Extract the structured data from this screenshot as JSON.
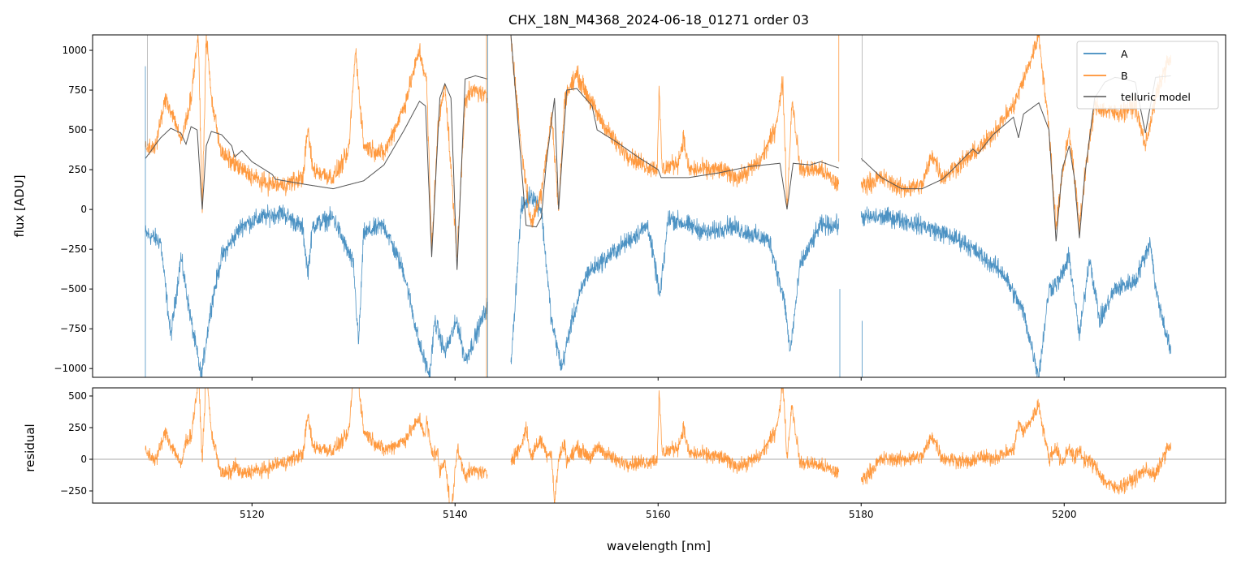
{
  "chart_data": {
    "type": "line",
    "title": "CHX_18N_M4368_2024-06-18_01271  order 03",
    "xlabel": "wavelength [nm]",
    "xlim": [
      5104.3,
      5215.9
    ],
    "xticks": [
      5120,
      5140,
      5160,
      5180,
      5200
    ],
    "legend_position": "top-right",
    "colors": {
      "A": "#1f77b4",
      "B": "#ff7f0e",
      "model": "#555555"
    },
    "panels": [
      {
        "name": "flux",
        "ylabel": "flux [ADU]",
        "ylim": [
          -1055,
          1097
        ],
        "yticks": [
          1000,
          750,
          500,
          250,
          0,
          -250,
          -500,
          -750,
          -1000
        ],
        "legend": [
          "A",
          "B",
          "telluric model"
        ]
      },
      {
        "name": "residual",
        "ylabel": "residual",
        "ylim": [
          -346,
          564
        ],
        "yticks": [
          500,
          250,
          0,
          -250
        ]
      }
    ],
    "segments": [
      [
        5109.5,
        5143.2
      ],
      [
        5145.5,
        5177.8
      ],
      [
        5180.0,
        5210.5
      ]
    ],
    "series": [
      {
        "name": "telluric model",
        "points": [
          [
            5109.5,
            320
          ],
          [
            5111,
            450
          ],
          [
            5112,
            510
          ],
          [
            5113,
            480
          ],
          [
            5113.5,
            410
          ],
          [
            5114,
            520
          ],
          [
            5114.6,
            500
          ],
          [
            5115.1,
            0
          ],
          [
            5115.5,
            400
          ],
          [
            5116,
            490
          ],
          [
            5117,
            470
          ],
          [
            5118,
            400
          ],
          [
            5118.3,
            330
          ],
          [
            5119,
            370
          ],
          [
            5120,
            300
          ],
          [
            5122,
            220
          ],
          [
            5122.3,
            190
          ],
          [
            5125,
            160
          ],
          [
            5128,
            130
          ],
          [
            5131,
            180
          ],
          [
            5133,
            280
          ],
          [
            5135,
            500
          ],
          [
            5136.5,
            680
          ],
          [
            5137.1,
            650
          ],
          [
            5137.7,
            -300
          ],
          [
            5138.5,
            700
          ],
          [
            5139,
            790
          ],
          [
            5139.6,
            700
          ],
          [
            5140.2,
            -380
          ],
          [
            5141,
            820
          ],
          [
            5142,
            840
          ],
          [
            5143.2,
            820
          ],
          [
            5145.5,
            1100
          ],
          [
            5146.5,
            300
          ],
          [
            5147,
            -100
          ],
          [
            5148,
            -110
          ],
          [
            5148.5,
            -50
          ],
          [
            5149,
            300
          ],
          [
            5149.8,
            700
          ],
          [
            5150.2,
            0
          ],
          [
            5151,
            750
          ],
          [
            5152,
            760
          ],
          [
            5153.5,
            650
          ],
          [
            5154,
            500
          ],
          [
            5156,
            420
          ],
          [
            5158,
            330
          ],
          [
            5160,
            250
          ],
          [
            5160.3,
            200
          ],
          [
            5163,
            200
          ],
          [
            5166,
            230
          ],
          [
            5169,
            270
          ],
          [
            5172,
            290
          ],
          [
            5172.7,
            0
          ],
          [
            5173.3,
            290
          ],
          [
            5175,
            280
          ],
          [
            5176,
            300
          ],
          [
            5177.8,
            260
          ],
          [
            5180,
            320
          ],
          [
            5182,
            200
          ],
          [
            5184,
            130
          ],
          [
            5186,
            130
          ],
          [
            5188,
            190
          ],
          [
            5189,
            250
          ],
          [
            5191,
            380
          ],
          [
            5191.5,
            350
          ],
          [
            5193,
            470
          ],
          [
            5195,
            580
          ],
          [
            5195.5,
            450
          ],
          [
            5196,
            600
          ],
          [
            5197.5,
            670
          ],
          [
            5198.5,
            500
          ],
          [
            5199.2,
            -200
          ],
          [
            5199.8,
            250
          ],
          [
            5200.5,
            400
          ],
          [
            5201,
            200
          ],
          [
            5201.5,
            -180
          ],
          [
            5202,
            200
          ],
          [
            5203,
            700
          ],
          [
            5204,
            800
          ],
          [
            5205,
            830
          ],
          [
            5206,
            820
          ],
          [
            5207,
            800
          ],
          [
            5208,
            480
          ],
          [
            5209,
            830
          ],
          [
            5210.5,
            840
          ]
        ]
      },
      {
        "name": "B",
        "points": [
          [
            5109.5,
            380
          ],
          [
            5110.5,
            400
          ],
          [
            5111.5,
            700
          ],
          [
            5112.5,
            550
          ],
          [
            5113,
            420
          ],
          [
            5114,
            700
          ],
          [
            5114.7,
            1100
          ],
          [
            5115.1,
            0
          ],
          [
            5115.5,
            1100
          ],
          [
            5116,
            700
          ],
          [
            5117,
            350
          ],
          [
            5119,
            250
          ],
          [
            5121,
            170
          ],
          [
            5123,
            150
          ],
          [
            5125,
            200
          ],
          [
            5125.5,
            500
          ],
          [
            5126,
            250
          ],
          [
            5128,
            200
          ],
          [
            5129.5,
            350
          ],
          [
            5130.2,
            1000
          ],
          [
            5131,
            400
          ],
          [
            5133,
            350
          ],
          [
            5135,
            650
          ],
          [
            5136.5,
            1000
          ],
          [
            5137.2,
            800
          ],
          [
            5137.7,
            -250
          ],
          [
            5138.3,
            500
          ],
          [
            5139,
            800
          ],
          [
            5140.2,
            -300
          ],
          [
            5141,
            700
          ],
          [
            5142,
            750
          ],
          [
            5143.2,
            700
          ],
          [
            5145.5,
            1100
          ],
          [
            5146.5,
            400
          ],
          [
            5147.5,
            -100
          ],
          [
            5148.5,
            100
          ],
          [
            5149.5,
            600
          ],
          [
            5150.2,
            0
          ],
          [
            5150.8,
            700
          ],
          [
            5152,
            850
          ],
          [
            5154,
            600
          ],
          [
            5156,
            400
          ],
          [
            5158,
            300
          ],
          [
            5159.9,
            250
          ],
          [
            5160.1,
            750
          ],
          [
            5160.4,
            250
          ],
          [
            5162,
            300
          ],
          [
            5162.5,
            450
          ],
          [
            5163,
            250
          ],
          [
            5166,
            250
          ],
          [
            5168,
            200
          ],
          [
            5170,
            300
          ],
          [
            5171.5,
            500
          ],
          [
            5172.3,
            800
          ],
          [
            5172.7,
            0
          ],
          [
            5173.2,
            700
          ],
          [
            5174,
            250
          ],
          [
            5176,
            250
          ],
          [
            5177.8,
            150
          ],
          [
            5180,
            150
          ],
          [
            5182,
            200
          ],
          [
            5184,
            130
          ],
          [
            5186,
            150
          ],
          [
            5187,
            350
          ],
          [
            5188,
            200
          ],
          [
            5190,
            300
          ],
          [
            5192,
            400
          ],
          [
            5195,
            650
          ],
          [
            5196.5,
            900
          ],
          [
            5197.5,
            1100
          ],
          [
            5198.5,
            500
          ],
          [
            5199.2,
            -100
          ],
          [
            5200,
            300
          ],
          [
            5200.5,
            500
          ],
          [
            5201.5,
            -100
          ],
          [
            5202.2,
            300
          ],
          [
            5203,
            650
          ],
          [
            5205,
            600
          ],
          [
            5207,
            650
          ],
          [
            5208,
            400
          ],
          [
            5209,
            700
          ],
          [
            5210,
            900
          ],
          [
            5210.5,
            950
          ]
        ]
      },
      {
        "name": "A",
        "points": [
          [
            5109.5,
            -150
          ],
          [
            5111,
            -200
          ],
          [
            5112,
            -800
          ],
          [
            5113,
            -300
          ],
          [
            5114,
            -700
          ],
          [
            5115,
            -1050
          ],
          [
            5116,
            -600
          ],
          [
            5117,
            -300
          ],
          [
            5119,
            -100
          ],
          [
            5121,
            -50
          ],
          [
            5123,
            -20
          ],
          [
            5125,
            -120
          ],
          [
            5125.5,
            -400
          ],
          [
            5126,
            -100
          ],
          [
            5128,
            -50
          ],
          [
            5130,
            -350
          ],
          [
            5130.5,
            -850
          ],
          [
            5131,
            -150
          ],
          [
            5133,
            -100
          ],
          [
            5135,
            -400
          ],
          [
            5136.5,
            -850
          ],
          [
            5137.5,
            -1050
          ],
          [
            5138,
            -700
          ],
          [
            5139,
            -900
          ],
          [
            5140.2,
            -700
          ],
          [
            5141,
            -950
          ],
          [
            5142,
            -800
          ],
          [
            5143.2,
            -600
          ],
          [
            5145.5,
            -1000
          ],
          [
            5146.5,
            0
          ],
          [
            5147.5,
            100
          ],
          [
            5148.5,
            0
          ],
          [
            5149.5,
            -700
          ],
          [
            5150.5,
            -1000
          ],
          [
            5151.5,
            -700
          ],
          [
            5153,
            -400
          ],
          [
            5155,
            -300
          ],
          [
            5157,
            -200
          ],
          [
            5159,
            -100
          ],
          [
            5160.2,
            -550
          ],
          [
            5161,
            -50
          ],
          [
            5163,
            -100
          ],
          [
            5165,
            -150
          ],
          [
            5167,
            -100
          ],
          [
            5169,
            -150
          ],
          [
            5171,
            -200
          ],
          [
            5172.5,
            -600
          ],
          [
            5173,
            -900
          ],
          [
            5174,
            -350
          ],
          [
            5176,
            -100
          ],
          [
            5177.8,
            -100
          ],
          [
            5180,
            -50
          ],
          [
            5183,
            -50
          ],
          [
            5186,
            -100
          ],
          [
            5188,
            -150
          ],
          [
            5190,
            -200
          ],
          [
            5192,
            -300
          ],
          [
            5194,
            -400
          ],
          [
            5196,
            -650
          ],
          [
            5197.5,
            -1050
          ],
          [
            5198.5,
            -500
          ],
          [
            5199.5,
            -450
          ],
          [
            5200.5,
            -300
          ],
          [
            5201.5,
            -800
          ],
          [
            5202.5,
            -300
          ],
          [
            5203.5,
            -700
          ],
          [
            5205,
            -500
          ],
          [
            5207,
            -450
          ],
          [
            5208.5,
            -200
          ],
          [
            5209,
            -500
          ],
          [
            5210.5,
            -900
          ]
        ]
      }
    ],
    "residual": "B - telluric model",
    "noise_amplitude": 60
  }
}
